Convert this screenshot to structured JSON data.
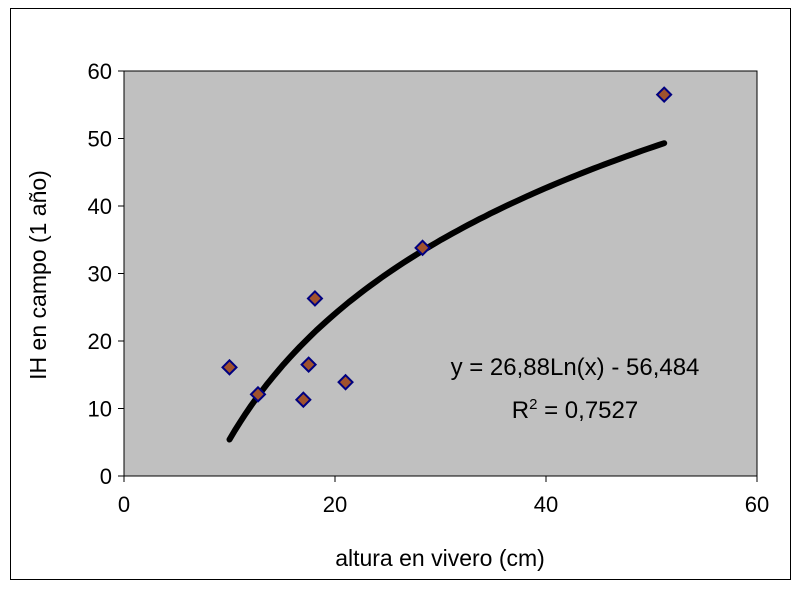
{
  "chart_data": {
    "type": "scatter",
    "xlabel": "altura en vivero (cm)",
    "ylabel": "IH en campo (1 año)",
    "xlim": [
      0,
      60
    ],
    "ylim": [
      0,
      60
    ],
    "xticks": [
      "0",
      "20",
      "40",
      "60"
    ],
    "yticks": [
      "0",
      "10",
      "20",
      "30",
      "40",
      "50",
      "60"
    ],
    "grid": false,
    "plot_background": "#c0c0c0",
    "points": [
      {
        "x": 10.0,
        "y": 16.1
      },
      {
        "x": 12.7,
        "y": 12.1
      },
      {
        "x": 17.0,
        "y": 11.3
      },
      {
        "x": 17.5,
        "y": 16.5
      },
      {
        "x": 18.1,
        "y": 26.3
      },
      {
        "x": 21.0,
        "y": 13.9
      },
      {
        "x": 28.3,
        "y": 33.8
      },
      {
        "x": 51.2,
        "y": 56.5
      }
    ],
    "trendline": {
      "type": "logarithmic",
      "a": 26.88,
      "b": -56.484,
      "x_range": [
        10,
        51.2
      ],
      "equation_label": "y = 26,88Ln(x) - 56,484",
      "r2_prefix": "R",
      "r2_sup": "2",
      "r2_value": " = 0,7527"
    },
    "marker_fill": "#a0522d",
    "marker_stroke": "#000080",
    "line_color": "#000000"
  }
}
